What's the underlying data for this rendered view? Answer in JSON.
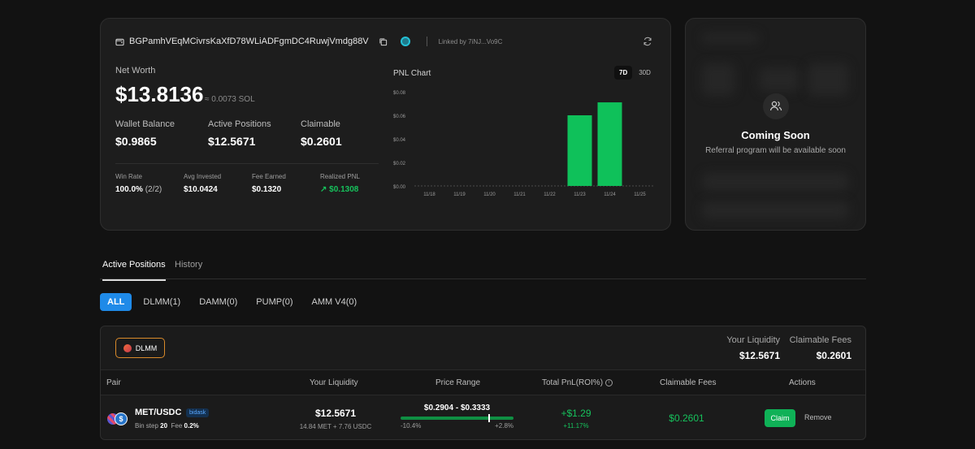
{
  "wallet": {
    "address": "BGPamhVEqMCivrsKaXfD78WLiADFgmDC4RuwjVmdg88V",
    "linked": "Linked by 7iNJ...Vo9C"
  },
  "net_worth": {
    "label": "Net Worth",
    "value": "$13.8136",
    "sol": "≈ 0.0073 SOL"
  },
  "stats": [
    {
      "label": "Wallet Balance",
      "value": "$0.9865"
    },
    {
      "label": "Active Positions",
      "value": "$12.5671"
    },
    {
      "label": "Claimable",
      "value": "$0.2601"
    }
  ],
  "mini_stats": {
    "win_rate": {
      "label": "Win Rate",
      "value": "100.0%",
      "sub": "(2/2)"
    },
    "avg_invested": {
      "label": "Avg Invested",
      "value": "$10.0424"
    },
    "fee_earned": {
      "label": "Fee Earned",
      "value": "$0.1320"
    },
    "realized_pnl": {
      "label": "Realized PNL",
      "value": "$0.1308"
    }
  },
  "pnl_chart": {
    "title": "PNL Chart",
    "ranges": [
      "7D",
      "30D"
    ],
    "active_range": "7D"
  },
  "chart_data": {
    "type": "bar",
    "title": "PNL Chart",
    "categories": [
      "11/18",
      "11/19",
      "11/20",
      "11/21",
      "11/22",
      "11/23",
      "11/24",
      "11/25"
    ],
    "values": [
      0,
      0,
      0,
      0,
      0,
      0.06,
      0.071,
      0
    ],
    "y_ticks": [
      "$0.00",
      "$0.02",
      "$0.04",
      "$0.06",
      "$0.08"
    ],
    "ylim": [
      0,
      0.08
    ],
    "bar_color": "#0fc15a",
    "grid": false
  },
  "referral": {
    "title": "Coming Soon",
    "subtitle": "Referral program will be available soon"
  },
  "tabs": [
    "Active Positions",
    "History"
  ],
  "filters": [
    "ALL",
    "DLMM(1)",
    "DAMM(0)",
    "PUMP(0)",
    "AMM V4(0)"
  ],
  "position_group": {
    "badge": "DLMM",
    "your_liquidity_label": "Your Liquidity",
    "your_liquidity": "$12.5671",
    "claimable_fees_label": "Claimable Fees",
    "claimable_fees": "$0.2601"
  },
  "table": {
    "headers": [
      "Pair",
      "Your Liquidity",
      "Price Range",
      "Total PnL(ROI%)",
      "Claimable Fees",
      "Actions"
    ],
    "rows": [
      {
        "pair": "MET/USDC",
        "tag": "bidask",
        "bin_step_label": "Bin step",
        "bin_step": "20",
        "fee_label": "Fee",
        "fee": "0.2%",
        "liquidity": "$12.5671",
        "liquidity_detail": "14.84 MET + 7.76 USDC",
        "price_range": "$0.2904 - $0.3333",
        "range_low_pct": "-10.4%",
        "range_high_pct": "+2.8%",
        "range_position": 0.78,
        "pnl": "+$1.29",
        "roi": "+11.17%",
        "claimable_fees": "$0.2601",
        "claim_label": "Claim",
        "remove_label": "Remove"
      }
    ]
  },
  "colors": {
    "accent": "#1f8ae8",
    "positive": "#16c25c",
    "dlmm_border": "#d98a2a"
  }
}
